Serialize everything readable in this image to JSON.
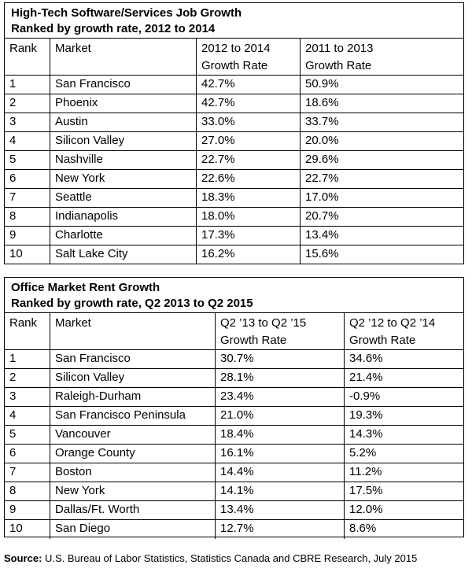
{
  "table1": {
    "title": "High-Tech Software/Services Job Growth",
    "subtitle": "Ranked by growth rate, 2012 to 2014",
    "headers": {
      "rank": "Rank",
      "market": "Market",
      "col1_line1": "2012 to 2014",
      "col1_line2": "Growth Rate",
      "col2_line1": "2011 to 2013",
      "col2_line2": "Growth Rate"
    },
    "rows": [
      {
        "rank": "1",
        "market": "San Francisco",
        "g1": "42.7%",
        "g2": "50.9%"
      },
      {
        "rank": "2",
        "market": "Phoenix",
        "g1": "42.7%",
        "g2": "18.6%"
      },
      {
        "rank": "3",
        "market": "Austin",
        "g1": "33.0%",
        "g2": "33.7%"
      },
      {
        "rank": "4",
        "market": "Silicon Valley",
        "g1": "27.0%",
        "g2": "20.0%"
      },
      {
        "rank": "5",
        "market": "Nashville",
        "g1": "22.7%",
        "g2": "29.6%"
      },
      {
        "rank": "6",
        "market": "New York",
        "g1": "22.6%",
        "g2": "22.7%"
      },
      {
        "rank": "7",
        "market": "Seattle",
        "g1": "18.3%",
        "g2": "17.0%"
      },
      {
        "rank": "8",
        "market": "Indianapolis",
        "g1": "18.0%",
        "g2": "20.7%"
      },
      {
        "rank": "9",
        "market": "Charlotte",
        "g1": "17.3%",
        "g2": "13.4%"
      },
      {
        "rank": "10",
        "market": "Salt Lake City",
        "g1": "16.2%",
        "g2": "15.6%"
      }
    ]
  },
  "table2": {
    "title": "Office Market Rent Growth",
    "subtitle": "Ranked by growth rate, Q2 2013 to Q2 2015",
    "headers": {
      "rank": "Rank",
      "market": "Market",
      "col1_line1": "Q2 ’13 to Q2 ’15",
      "col1_line2": "Growth Rate",
      "col2_line1": "Q2 ’12 to Q2 ’14",
      "col2_line2": "Growth Rate"
    },
    "rows": [
      {
        "rank": "1",
        "market": "San Francisco",
        "g1": "30.7%",
        "g2": "34.6%"
      },
      {
        "rank": "2",
        "market": "Silicon Valley",
        "g1": "28.1%",
        "g2": "21.4%"
      },
      {
        "rank": "3",
        "market": "Raleigh-Durham",
        "g1": "23.4%",
        "g2": "-0.9%"
      },
      {
        "rank": "4",
        "market": "San Francisco Peninsula",
        "g1": "21.0%",
        "g2": "19.3%"
      },
      {
        "rank": "5",
        "market": "Vancouver",
        "g1": "18.4%",
        "g2": "14.3%"
      },
      {
        "rank": "6",
        "market": "Orange County",
        "g1": "16.1%",
        "g2": "5.2%"
      },
      {
        "rank": "7",
        "market": "Boston",
        "g1": "14.4%",
        "g2": "11.2%"
      },
      {
        "rank": "8",
        "market": "New York",
        "g1": "14.1%",
        "g2": "17.5%"
      },
      {
        "rank": "9",
        "market": "Dallas/Ft. Worth",
        "g1": "13.4%",
        "g2": "12.0%"
      },
      {
        "rank": "10",
        "market": "San Diego",
        "g1": "12.7%",
        "g2": "8.6%"
      }
    ]
  },
  "source": {
    "label": "Source:",
    "text": " U.S. Bureau of Labor Statistics, Statistics Canada and CBRE Research, July 2015"
  }
}
